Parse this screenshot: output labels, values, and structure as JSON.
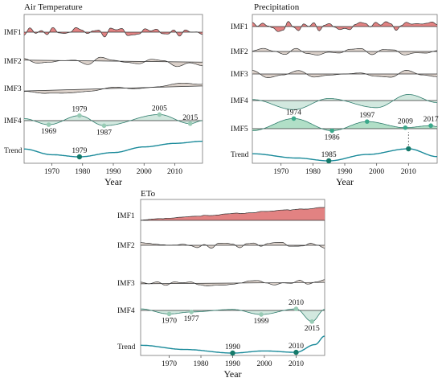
{
  "colors": {
    "imf1": "#e07b7b",
    "mid": "#d8cdc6",
    "imf4": "#cde5db",
    "imf5": "#a9dcc1",
    "trend": "#1a8a9a",
    "point_dark": "#157a6a",
    "point_mid": "#3aa88a",
    "point_light": "#98cbb5"
  },
  "chart_data": [
    {
      "type": "line",
      "title": "Air Temperature",
      "xlabel": "Year",
      "xlim": [
        1961,
        2019
      ],
      "xticks": [
        "1970",
        "1980",
        "1990",
        "2000",
        "2010"
      ],
      "rows": [
        {
          "name": "IMF1",
          "kind": "noise",
          "color_key": "imf1",
          "seed": 3,
          "ampl": 0.9,
          "freq": 2.6,
          "drift": 0.0
        },
        {
          "name": "IMF2",
          "kind": "noise",
          "color_key": "mid",
          "seed": 7,
          "ampl": 0.85,
          "freq": 1.2,
          "drift": -0.35
        },
        {
          "name": "IMF3",
          "kind": "noise",
          "color_key": "mid",
          "seed": 11,
          "ampl": 0.45,
          "freq": 0.7,
          "drift": 0.9
        },
        {
          "name": "IMF4",
          "kind": "wave",
          "color_key": "imf4",
          "x": [
            1961,
            1969,
            1979,
            1987,
            2005,
            2015,
            2019
          ],
          "y": [
            0.2,
            -0.4,
            0.5,
            -0.5,
            0.6,
            -0.3,
            0.0
          ],
          "points": [
            {
              "year": "1969",
              "shade": "point_light",
              "pos": "below"
            },
            {
              "year": "1979",
              "shade": "point_light",
              "pos": "above"
            },
            {
              "year": "1987",
              "shade": "point_light",
              "pos": "below"
            },
            {
              "year": "2005",
              "shade": "point_light",
              "pos": "above"
            },
            {
              "year": "2015",
              "shade": "point_light",
              "pos": "above"
            }
          ]
        },
        {
          "name": "Trend",
          "kind": "trend",
          "color_key": "trend",
          "x": [
            1961,
            1970,
            1979,
            1990,
            2000,
            2010,
            2019
          ],
          "y": [
            0.55,
            0.15,
            0.0,
            0.3,
            0.7,
            0.95,
            1.1
          ],
          "points": [
            {
              "year": "1979",
              "shade": "point_dark",
              "pos": "above"
            }
          ]
        }
      ]
    },
    {
      "type": "line",
      "title": "Precipitation",
      "xlabel": "Year",
      "xlim": [
        1961,
        2019
      ],
      "xticks": [
        "1970",
        "1980",
        "1990",
        "2000",
        "2010"
      ],
      "rows": [
        {
          "name": "IMF1",
          "kind": "noise",
          "color_key": "imf1",
          "seed": 5,
          "ampl": 0.95,
          "freq": 3.0,
          "drift": 0.0
        },
        {
          "name": "IMF2",
          "kind": "noise",
          "color_key": "mid",
          "seed": 13,
          "ampl": 0.7,
          "freq": 1.4,
          "drift": 0.0
        },
        {
          "name": "IMF3",
          "kind": "noise",
          "color_key": "mid",
          "seed": 17,
          "ampl": 0.75,
          "freq": 1.0,
          "drift": 0.0
        },
        {
          "name": "IMF4",
          "kind": "wave",
          "color_key": "imf4",
          "x": [
            1961,
            1974,
            1985,
            2000,
            2010,
            2019
          ],
          "y": [
            0.1,
            -0.9,
            0.2,
            -0.7,
            0.6,
            -0.2
          ],
          "points": []
        },
        {
          "name": "IMF5",
          "kind": "wave",
          "color_key": "imf5",
          "x": [
            1961,
            1974,
            1986,
            1997,
            2009,
            2017,
            2019
          ],
          "y": [
            -0.2,
            1.0,
            -0.2,
            0.7,
            0.1,
            0.3,
            0.2
          ],
          "points": [
            {
              "year": "1974",
              "shade": "point_mid",
              "pos": "above"
            },
            {
              "year": "1986",
              "shade": "point_mid",
              "pos": "below"
            },
            {
              "year": "1997",
              "shade": "point_mid",
              "pos": "above"
            },
            {
              "year": "2009",
              "shade": "point_mid",
              "pos": "above"
            },
            {
              "year": "2017",
              "shade": "point_mid",
              "pos": "above"
            }
          ]
        },
        {
          "name": "Trend",
          "kind": "trend",
          "color_key": "trend",
          "x": [
            1961,
            1975,
            1985,
            1997,
            2010,
            2019
          ],
          "y": [
            0.5,
            0.2,
            0.0,
            0.45,
            0.85,
            0.3
          ],
          "points": [
            {
              "year": "1985",
              "shade": "point_dark",
              "pos": "above"
            },
            {
              "year": "2010",
              "shade": "point_dark",
              "pos": "none",
              "dashed": true
            }
          ]
        }
      ]
    },
    {
      "type": "line",
      "title": "ETo",
      "xlabel": "Year",
      "xlim": [
        1961,
        2019
      ],
      "xticks": [
        "1970",
        "1980",
        "1990",
        "2000",
        "2010"
      ],
      "rows": [
        {
          "name": "IMF1",
          "kind": "ramp",
          "color_key": "imf1",
          "seed": 19,
          "ampl": 0.25,
          "freq": 2.4,
          "drift": 2.2
        },
        {
          "name": "IMF2",
          "kind": "noise",
          "color_key": "mid",
          "seed": 23,
          "ampl": 0.55,
          "freq": 2.2,
          "drift": 0.0
        },
        {
          "name": "IMF3",
          "kind": "noise",
          "color_key": "mid",
          "seed": 29,
          "ampl": 0.45,
          "freq": 1.8,
          "drift": 0.25
        },
        {
          "name": "IMF4",
          "kind": "wave",
          "color_key": "imf4",
          "x": [
            1961,
            1970,
            1977,
            1990,
            1999,
            2010,
            2015,
            2019
          ],
          "y": [
            0.15,
            -0.35,
            -0.15,
            0.1,
            -0.4,
            0.15,
            -1.1,
            0.1
          ],
          "points": [
            {
              "year": "1970",
              "shade": "point_light",
              "pos": "below"
            },
            {
              "year": "1977",
              "shade": "point_light",
              "pos": "below"
            },
            {
              "year": "1999",
              "shade": "point_light",
              "pos": "below"
            },
            {
              "year": "2010",
              "shade": "point_light",
              "pos": "above"
            },
            {
              "year": "2015",
              "shade": "point_light",
              "pos": "below"
            }
          ]
        },
        {
          "name": "Trend",
          "kind": "trend",
          "color_key": "trend",
          "x": [
            1961,
            1975,
            1990,
            2000,
            2010,
            2016,
            2019
          ],
          "y": [
            0.55,
            0.25,
            0.0,
            0.15,
            0.05,
            0.6,
            1.2
          ],
          "points": [
            {
              "year": "1990",
              "shade": "point_dark",
              "pos": "above"
            },
            {
              "year": "2010",
              "shade": "point_dark",
              "pos": "above"
            }
          ]
        }
      ]
    }
  ]
}
